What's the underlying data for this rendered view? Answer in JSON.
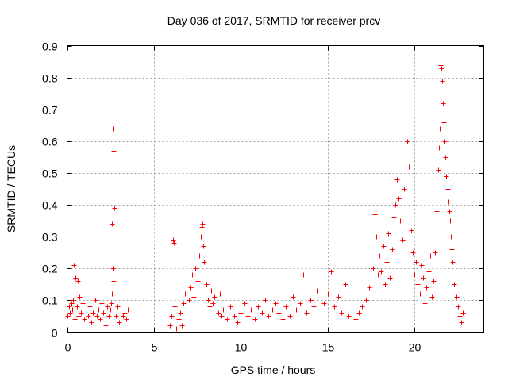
{
  "chart_data": {
    "type": "scatter",
    "title": "Day 036 of 2017, SRMTID for receiver prcv",
    "xlabel": "GPS time / hours",
    "ylabel": "SRMTID / TECUs",
    "xlim": [
      0,
      24
    ],
    "ylim": [
      0,
      0.9
    ],
    "xticks": [
      0,
      5,
      10,
      15,
      20
    ],
    "xtick_labels": [
      "0",
      "5",
      "10",
      "15",
      "20"
    ],
    "yticks": [
      0,
      0.1,
      0.2,
      0.3,
      0.4,
      0.5,
      0.6,
      0.7,
      0.8,
      0.9
    ],
    "ytick_labels": [
      "0",
      "0.1",
      "0.2",
      "0.3",
      "0.4",
      "0.5",
      "0.6",
      "0.7",
      "0.8",
      "0.9"
    ],
    "grid": true,
    "marker": "+",
    "color": "#ff0000",
    "series": [
      {
        "name": "prcv",
        "points": [
          [
            0.0,
            0.05
          ],
          [
            0.1,
            0.08
          ],
          [
            0.15,
            0.06
          ],
          [
            0.2,
            0.12
          ],
          [
            0.25,
            0.09
          ],
          [
            0.3,
            0.07
          ],
          [
            0.35,
            0.1
          ],
          [
            0.4,
            0.21
          ],
          [
            0.45,
            0.04
          ],
          [
            0.5,
            0.17
          ],
          [
            0.55,
            0.08
          ],
          [
            0.6,
            0.16
          ],
          [
            0.65,
            0.05
          ],
          [
            0.7,
            0.11
          ],
          [
            0.8,
            0.06
          ],
          [
            0.9,
            0.09
          ],
          [
            1.0,
            0.04
          ],
          [
            1.1,
            0.07
          ],
          [
            1.2,
            0.05
          ],
          [
            1.3,
            0.08
          ],
          [
            1.4,
            0.03
          ],
          [
            1.5,
            0.06
          ],
          [
            1.6,
            0.1
          ],
          [
            1.7,
            0.05
          ],
          [
            1.8,
            0.07
          ],
          [
            1.9,
            0.04
          ],
          [
            2.0,
            0.09
          ],
          [
            2.1,
            0.06
          ],
          [
            2.2,
            0.02
          ],
          [
            2.3,
            0.08
          ],
          [
            2.4,
            0.05
          ],
          [
            2.5,
            0.07
          ],
          [
            2.55,
            0.09
          ],
          [
            2.6,
            0.12
          ],
          [
            2.62,
            0.64
          ],
          [
            2.64,
            0.64
          ],
          [
            2.66,
            0.57
          ],
          [
            2.68,
            0.47
          ],
          [
            2.7,
            0.39
          ],
          [
            2.6,
            0.34
          ],
          [
            2.65,
            0.2
          ],
          [
            2.66,
            0.16
          ],
          [
            2.8,
            0.05
          ],
          [
            2.9,
            0.08
          ],
          [
            3.0,
            0.03
          ],
          [
            3.1,
            0.07
          ],
          [
            3.2,
            0.05
          ],
          [
            3.3,
            0.06
          ],
          [
            3.4,
            0.04
          ],
          [
            3.5,
            0.07
          ],
          [
            5.9,
            0.02
          ],
          [
            6.0,
            0.05
          ],
          [
            6.1,
            0.29
          ],
          [
            6.15,
            0.28
          ],
          [
            6.2,
            0.08
          ],
          [
            6.3,
            0.01
          ],
          [
            6.4,
            0.04
          ],
          [
            6.5,
            0.06
          ],
          [
            6.6,
            0.02
          ],
          [
            6.7,
            0.09
          ],
          [
            6.8,
            0.12
          ],
          [
            6.9,
            0.07
          ],
          [
            7.0,
            0.1
          ],
          [
            7.1,
            0.14
          ],
          [
            7.2,
            0.18
          ],
          [
            7.3,
            0.11
          ],
          [
            7.4,
            0.2
          ],
          [
            7.5,
            0.16
          ],
          [
            7.6,
            0.24
          ],
          [
            7.7,
            0.3
          ],
          [
            7.75,
            0.33
          ],
          [
            7.8,
            0.34
          ],
          [
            7.85,
            0.27
          ],
          [
            7.9,
            0.22
          ],
          [
            8.0,
            0.15
          ],
          [
            8.1,
            0.1
          ],
          [
            8.2,
            0.08
          ],
          [
            8.3,
            0.13
          ],
          [
            8.4,
            0.09
          ],
          [
            8.5,
            0.11
          ],
          [
            8.6,
            0.07
          ],
          [
            8.7,
            0.06
          ],
          [
            8.8,
            0.12
          ],
          [
            8.9,
            0.05
          ],
          [
            9.0,
            0.07
          ],
          [
            9.2,
            0.04
          ],
          [
            9.4,
            0.08
          ],
          [
            9.6,
            0.05
          ],
          [
            9.8,
            0.03
          ],
          [
            10.0,
            0.06
          ],
          [
            10.2,
            0.09
          ],
          [
            10.4,
            0.05
          ],
          [
            10.6,
            0.07
          ],
          [
            10.8,
            0.04
          ],
          [
            11.0,
            0.08
          ],
          [
            11.2,
            0.06
          ],
          [
            11.4,
            0.1
          ],
          [
            11.6,
            0.05
          ],
          [
            11.8,
            0.07
          ],
          [
            12.0,
            0.09
          ],
          [
            12.2,
            0.06
          ],
          [
            12.4,
            0.04
          ],
          [
            12.6,
            0.08
          ],
          [
            12.8,
            0.05
          ],
          [
            13.0,
            0.11
          ],
          [
            13.2,
            0.07
          ],
          [
            13.4,
            0.09
          ],
          [
            13.6,
            0.18
          ],
          [
            13.8,
            0.06
          ],
          [
            14.0,
            0.1
          ],
          [
            14.2,
            0.08
          ],
          [
            14.4,
            0.13
          ],
          [
            14.6,
            0.07
          ],
          [
            14.8,
            0.09
          ],
          [
            15.0,
            0.12
          ],
          [
            15.2,
            0.19
          ],
          [
            15.4,
            0.08
          ],
          [
            15.6,
            0.11
          ],
          [
            15.8,
            0.06
          ],
          [
            16.0,
            0.15
          ],
          [
            16.2,
            0.05
          ],
          [
            16.4,
            0.07
          ],
          [
            16.6,
            0.04
          ],
          [
            16.8,
            0.06
          ],
          [
            17.0,
            0.08
          ],
          [
            17.2,
            0.1
          ],
          [
            17.4,
            0.14
          ],
          [
            17.6,
            0.2
          ],
          [
            17.7,
            0.37
          ],
          [
            17.8,
            0.3
          ],
          [
            17.9,
            0.18
          ],
          [
            18.0,
            0.24
          ],
          [
            18.1,
            0.19
          ],
          [
            18.2,
            0.27
          ],
          [
            18.3,
            0.15
          ],
          [
            18.4,
            0.22
          ],
          [
            18.5,
            0.31
          ],
          [
            18.6,
            0.17
          ],
          [
            18.7,
            0.26
          ],
          [
            18.8,
            0.36
          ],
          [
            18.9,
            0.4
          ],
          [
            19.0,
            0.48
          ],
          [
            19.1,
            0.42
          ],
          [
            19.2,
            0.35
          ],
          [
            19.3,
            0.29
          ],
          [
            19.4,
            0.45
          ],
          [
            19.5,
            0.58
          ],
          [
            19.6,
            0.6
          ],
          [
            19.7,
            0.52
          ],
          [
            19.8,
            0.32
          ],
          [
            19.9,
            0.25
          ],
          [
            20.0,
            0.18
          ],
          [
            20.1,
            0.22
          ],
          [
            20.2,
            0.15
          ],
          [
            20.3,
            0.12
          ],
          [
            20.4,
            0.21
          ],
          [
            20.5,
            0.17
          ],
          [
            20.6,
            0.09
          ],
          [
            20.7,
            0.14
          ],
          [
            20.8,
            0.19
          ],
          [
            20.9,
            0.24
          ],
          [
            21.0,
            0.11
          ],
          [
            21.1,
            0.16
          ],
          [
            21.2,
            0.25
          ],
          [
            21.3,
            0.38
          ],
          [
            21.35,
            0.51
          ],
          [
            21.4,
            0.58
          ],
          [
            21.45,
            0.64
          ],
          [
            21.5,
            0.84
          ],
          [
            21.55,
            0.83
          ],
          [
            21.6,
            0.79
          ],
          [
            21.65,
            0.72
          ],
          [
            21.7,
            0.66
          ],
          [
            21.75,
            0.6
          ],
          [
            21.8,
            0.55
          ],
          [
            21.85,
            0.49
          ],
          [
            21.9,
            0.45
          ],
          [
            21.95,
            0.41
          ],
          [
            22.0,
            0.38
          ],
          [
            22.05,
            0.35
          ],
          [
            22.1,
            0.3
          ],
          [
            22.15,
            0.26
          ],
          [
            22.2,
            0.22
          ],
          [
            22.3,
            0.15
          ],
          [
            22.4,
            0.11
          ],
          [
            22.5,
            0.08
          ],
          [
            22.6,
            0.05
          ],
          [
            22.7,
            0.03
          ],
          [
            22.8,
            0.06
          ]
        ]
      }
    ]
  }
}
